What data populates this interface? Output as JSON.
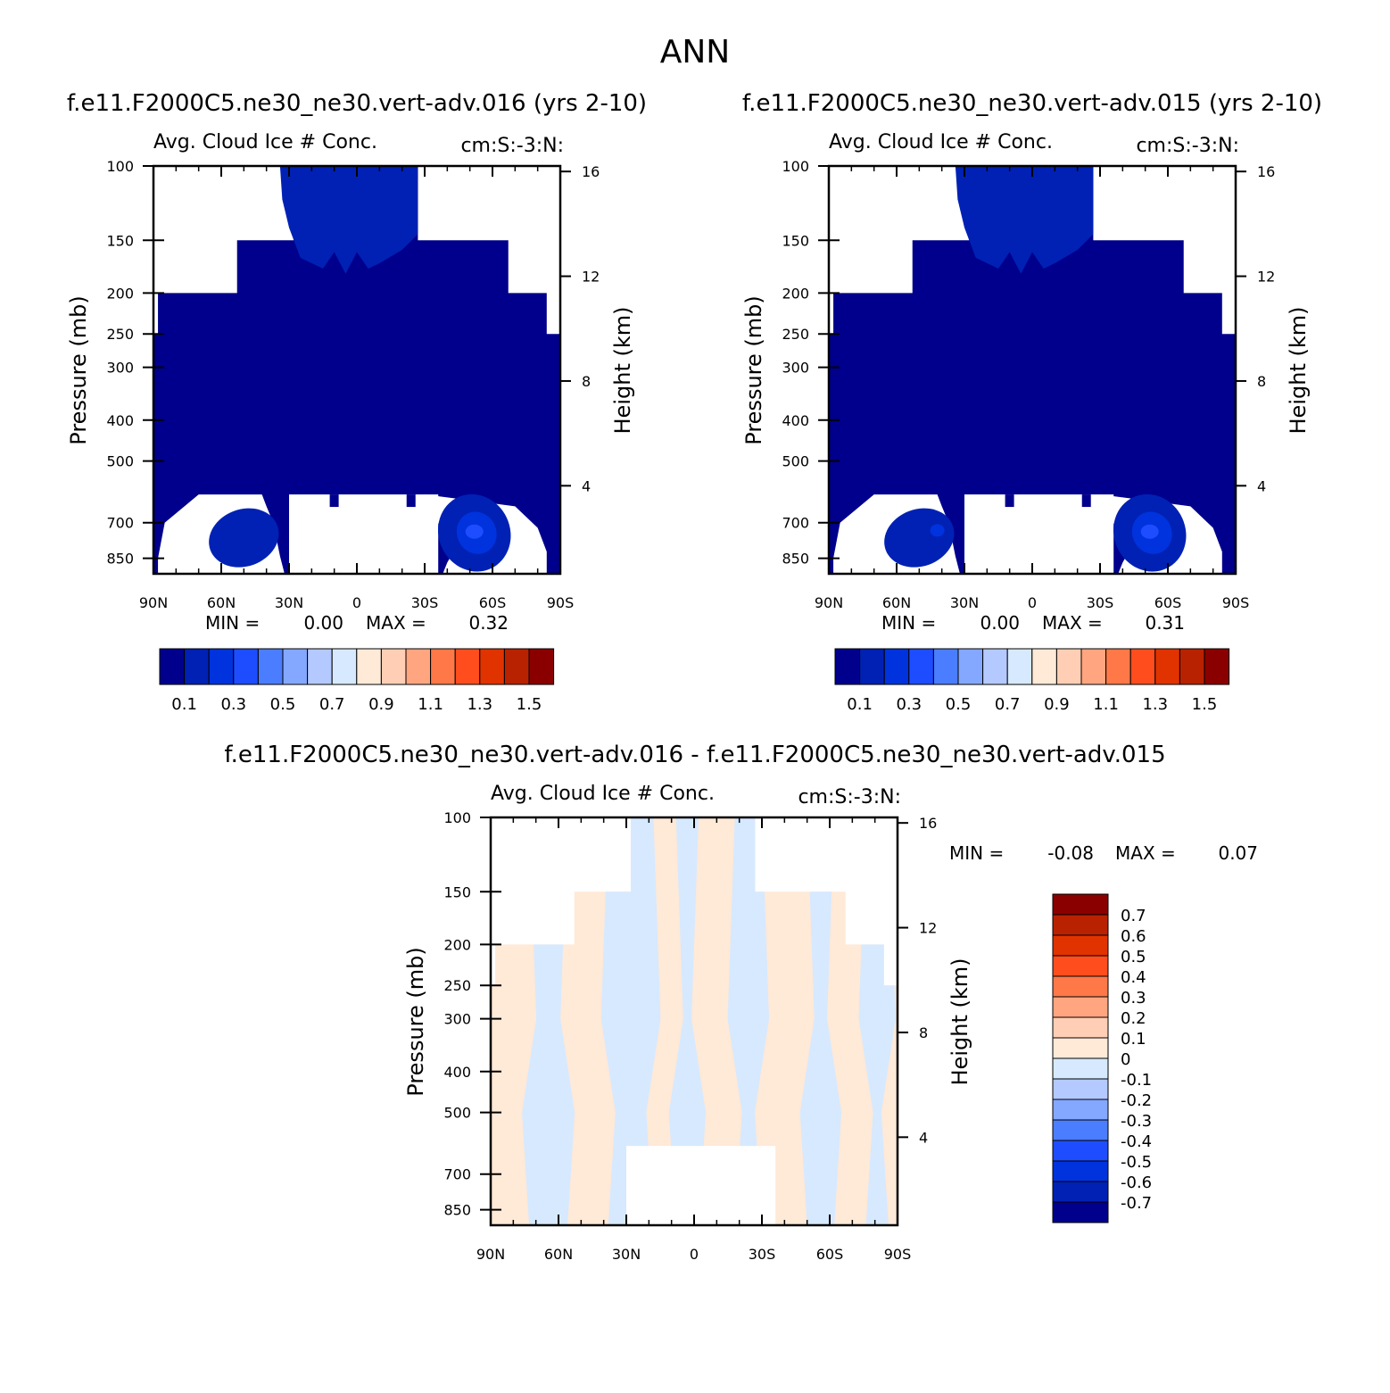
{
  "page": {
    "title": "ANN"
  },
  "colors": {
    "abs": [
      "#00008c",
      "#0021b4",
      "#0033dd",
      "#1e4dff",
      "#4a7dff",
      "#84a7ff",
      "#b3c9ff",
      "#d6e9ff",
      "#ffe9d7",
      "#ffceb4",
      "#ffa57f",
      "#ff7848",
      "#ff4d1e",
      "#e13300",
      "#b92200",
      "#8a0000"
    ],
    "diff": [
      "#00008c",
      "#0021b4",
      "#0033dd",
      "#1e4dff",
      "#4a7dff",
      "#84a7ff",
      "#b3c9ff",
      "#d6e9ff",
      "#ffe9d7",
      "#ffceb4",
      "#ffa57f",
      "#ff7848",
      "#ff4d1e",
      "#e13300",
      "#b92200",
      "#8a0000"
    ]
  },
  "chart_data": [
    {
      "type": "heatmap",
      "title": "f.e11.F2000C5.ne30_ne30.vert-adv.016 (yrs 2-10)",
      "subtitle_left": "Avg. Cloud Ice # Conc.",
      "subtitle_right": "cm:S:-3:N:",
      "ylabel": "Pressure (mb)",
      "y2label": "Height (km)",
      "x_ticks": [
        "90N",
        "60N",
        "30N",
        "0",
        "30S",
        "60S",
        "90S"
      ],
      "x_range": [
        90,
        -90
      ],
      "y_ticks": [
        "100",
        "150",
        "200",
        "250",
        "300",
        "400",
        "500",
        "700",
        "850"
      ],
      "y2_ticks": [
        "16",
        "12",
        "8",
        "4"
      ],
      "y_range": [
        100,
        925
      ],
      "y_scale": "log",
      "min_label": "MIN =",
      "min": "0.00",
      "max_label": "MAX =",
      "max": "0.32",
      "colorbar": {
        "orientation": "horizontal",
        "labels": [
          "0.1",
          "0.3",
          "0.5",
          "0.7",
          "0.9",
          "1.1",
          "1.3",
          "1.5"
        ]
      },
      "grid": false
    },
    {
      "type": "heatmap",
      "title": "f.e11.F2000C5.ne30_ne30.vert-adv.015 (yrs 2-10)",
      "subtitle_left": "Avg. Cloud Ice # Conc.",
      "subtitle_right": "cm:S:-3:N:",
      "ylabel": "Pressure (mb)",
      "y2label": "Height (km)",
      "x_ticks": [
        "90N",
        "60N",
        "30N",
        "0",
        "30S",
        "60S",
        "90S"
      ],
      "x_range": [
        90,
        -90
      ],
      "y_ticks": [
        "100",
        "150",
        "200",
        "250",
        "300",
        "400",
        "500",
        "700",
        "850"
      ],
      "y2_ticks": [
        "16",
        "12",
        "8",
        "4"
      ],
      "y_range": [
        100,
        925
      ],
      "y_scale": "log",
      "min_label": "MIN =",
      "min": "0.00",
      "max_label": "MAX =",
      "max": "0.31",
      "colorbar": {
        "orientation": "horizontal",
        "labels": [
          "0.1",
          "0.3",
          "0.5",
          "0.7",
          "0.9",
          "1.1",
          "1.3",
          "1.5"
        ]
      },
      "grid": false
    },
    {
      "type": "heatmap",
      "title": "f.e11.F2000C5.ne30_ne30.vert-adv.016 - f.e11.F2000C5.ne30_ne30.vert-adv.015",
      "subtitle_left": "Avg. Cloud Ice # Conc.",
      "subtitle_right": "cm:S:-3:N:",
      "ylabel": "Pressure (mb)",
      "y2label": "Height (km)",
      "x_ticks": [
        "90N",
        "60N",
        "30N",
        "0",
        "30S",
        "60S",
        "90S"
      ],
      "x_range": [
        90,
        -90
      ],
      "y_ticks": [
        "100",
        "150",
        "200",
        "250",
        "300",
        "400",
        "500",
        "700",
        "850"
      ],
      "y2_ticks": [
        "16",
        "12",
        "8",
        "4"
      ],
      "y_range": [
        100,
        925
      ],
      "y_scale": "log",
      "min_label": "MIN =",
      "min": "-0.08",
      "max_label": "MAX =",
      "max": "0.07",
      "colorbar": {
        "orientation": "vertical",
        "labels": [
          "0.7",
          "0.6",
          "0.5",
          "0.4",
          "0.3",
          "0.2",
          "0.1",
          "0",
          "-0.1",
          "-0.2",
          "-0.3",
          "-0.4",
          "-0.5",
          "-0.6",
          "-0.7"
        ]
      },
      "grid": false
    }
  ]
}
